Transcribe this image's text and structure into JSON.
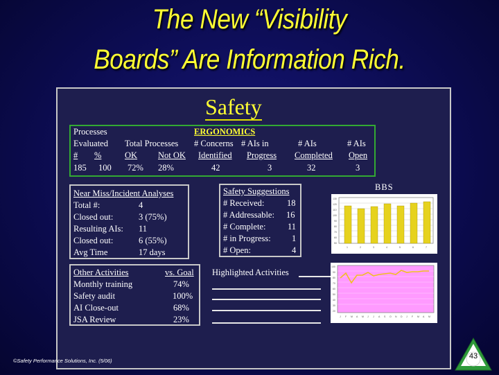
{
  "title": {
    "line1": "The New “Visibility",
    "line2": "Boards” Are Information Rich."
  },
  "board": {
    "heading": "Safety",
    "processes": {
      "l1": "Processes",
      "l2": "Evaluated",
      "l3a": "#",
      "l3b": "%",
      "l4a": "185",
      "l4b": "100"
    },
    "total_processes": {
      "label": "Total Processes",
      "ok_label": "OK",
      "notok_label": "Not OK",
      "ok_value": "72%",
      "notok_value": "28%"
    },
    "ergonomics": {
      "heading": "ERGONOMICS",
      "concerns_l1": "# Concerns",
      "concerns_l2": "Identified",
      "concerns_value": "42",
      "ais_in_l1": "# AIs in",
      "ais_in_l2": "Progress",
      "ais_in_value": "3",
      "ais_l1": "# AIs",
      "ais_l2": "Completed",
      "ais_value": "32",
      "ais_open_l1": "# AIs",
      "ais_open_l2": "Open",
      "ais_open_value": "3"
    },
    "near_miss": {
      "heading": "Near Miss/Incident Analyses",
      "rows": [
        {
          "label": "Total #:",
          "value": "4"
        },
        {
          "label": "Closed out:",
          "value": "3 (75%)"
        },
        {
          "label": "Resulting AIs:",
          "value": "11"
        },
        {
          "label": "Closed out:",
          "value": "6 (55%)"
        },
        {
          "label": "Avg Time",
          "value": "17 days"
        }
      ]
    },
    "suggestions": {
      "heading": "Safety Suggestions",
      "rows": [
        {
          "label": "# Received:",
          "value": "18"
        },
        {
          "label": "# Addressable:",
          "value": "16"
        },
        {
          "label": "# Complete:",
          "value": "11"
        },
        {
          "label": "# in Progress:",
          "value": "1"
        },
        {
          "label": "# Open:",
          "value": "4"
        }
      ]
    },
    "other": {
      "heading": "Other Activities",
      "goal_heading": "vs. Goal",
      "rows": [
        {
          "label": "Monthly training",
          "value": "74%"
        },
        {
          "label": "Safety audit",
          "value": "100%"
        },
        {
          "label": "AI Close-out",
          "value": "68%"
        },
        {
          "label": "JSA Review",
          "value": "23%"
        }
      ]
    },
    "highlighted": {
      "heading": "Highlighted Activities"
    },
    "bbs": {
      "label": "BBS"
    }
  },
  "footer": {
    "copyright": "©Safety Performance Solutions, Inc. (5/06)"
  },
  "page": {
    "number": "43"
  },
  "colors": {
    "title": "#ffff33",
    "bars": "#e6d21e",
    "line": "#f0c020",
    "chart2_bg": "#ff9aff",
    "box_green": "#33aa33"
  }
}
